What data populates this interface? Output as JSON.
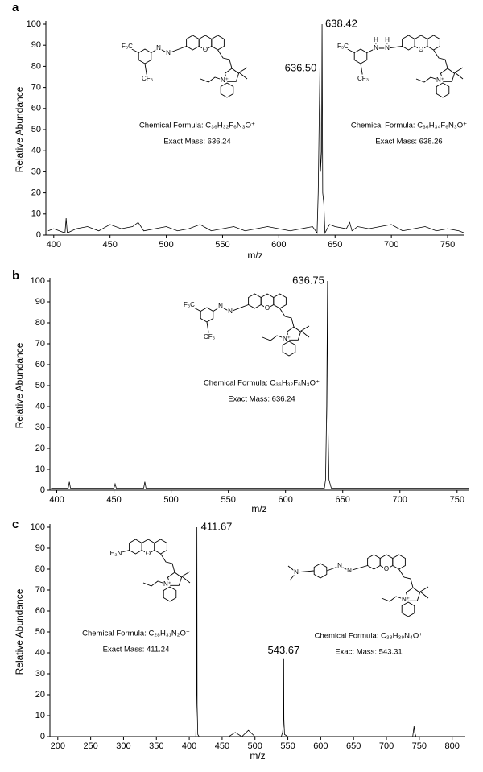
{
  "chart_data": [
    {
      "type": "line",
      "panel": "a",
      "ylabel": "Relative Abundance",
      "xlabel": "m/z",
      "color": "#000000",
      "xlim": [
        393,
        765
      ],
      "xticks": [
        400,
        450,
        500,
        550,
        600,
        650,
        700,
        750
      ],
      "ylim": [
        0,
        100
      ],
      "yticks": [
        0,
        10,
        20,
        30,
        40,
        50,
        60,
        70,
        80,
        90,
        100
      ],
      "x": [
        395,
        400,
        405,
        410,
        411,
        412,
        420,
        430,
        440,
        450,
        460,
        470,
        475,
        480,
        490,
        500,
        510,
        520,
        530,
        540,
        550,
        560,
        570,
        580,
        590,
        600,
        610,
        620,
        630,
        634,
        635,
        636,
        636.5,
        637,
        638,
        638.42,
        639,
        640,
        641,
        645,
        650,
        660,
        663,
        665,
        670,
        680,
        690,
        700,
        710,
        720,
        730,
        740,
        750,
        760,
        765
      ],
      "values": [
        2,
        3,
        2,
        1,
        8,
        1,
        3,
        4,
        2,
        5,
        3,
        4,
        6,
        2,
        3,
        4,
        2,
        3,
        5,
        2,
        3,
        4,
        2,
        3,
        4,
        3,
        2,
        3,
        4,
        1,
        20,
        60,
        79,
        30,
        40,
        100,
        20,
        15,
        1,
        5,
        4,
        3,
        6,
        2,
        4,
        3,
        4,
        5,
        2,
        3,
        4,
        2,
        3,
        2,
        1
      ],
      "annotations": [
        {
          "label": "638.42",
          "x": 638.42,
          "y": 100
        },
        {
          "label": "636.50",
          "x": 636.5,
          "y": 79
        }
      ],
      "structures": [
        {
          "atoms": [
            "F₃C",
            "N",
            "N",
            "O",
            "CF₃",
            "N⁺"
          ],
          "formula": "Chemical Formula: C₃₆H₃₂F₆N₃O⁺",
          "mass": "Exact Mass: 636.24"
        },
        {
          "atoms": [
            "F₃C",
            "N",
            "N",
            "H",
            "H",
            "O",
            "CF₃",
            "N⁺"
          ],
          "formula": "Chemical Formula: C₃₆H₃₄F₆N₃O⁺",
          "mass": "Exact Mass: 638.26"
        }
      ]
    },
    {
      "type": "line",
      "panel": "b",
      "ylabel": "Relative Abundance",
      "xlabel": "m/z",
      "color": "#000000",
      "xlim": [
        394,
        760
      ],
      "xticks": [
        400,
        450,
        500,
        550,
        600,
        650,
        700,
        750
      ],
      "ylim": [
        0,
        100
      ],
      "yticks": [
        0,
        10,
        20,
        30,
        40,
        50,
        60,
        70,
        80,
        90,
        100
      ],
      "x": [
        395,
        410,
        411,
        412,
        430,
        450,
        451,
        452,
        470,
        476,
        477,
        478,
        480,
        500,
        530,
        550,
        580,
        600,
        620,
        630,
        634,
        635,
        636,
        636.75,
        637,
        638,
        640,
        660,
        700,
        740,
        760
      ],
      "values": [
        1,
        1,
        4,
        1,
        1,
        1,
        3,
        1,
        1,
        1,
        4,
        1,
        1,
        1,
        1,
        1,
        1,
        1,
        1,
        1,
        1,
        5,
        40,
        100,
        35,
        5,
        1,
        1,
        1,
        1,
        1
      ],
      "annotations": [
        {
          "label": "636.75",
          "x": 636.75,
          "y": 100
        }
      ],
      "structures": [
        {
          "atoms": [
            "F₃C",
            "N",
            "N",
            "O",
            "CF₃",
            "N⁺"
          ],
          "formula": "Chemical Formula: C₃₆H₃₂F₆N₃O⁺",
          "mass": "Exact Mass: 636.24"
        }
      ]
    },
    {
      "type": "line",
      "panel": "c",
      "ylabel": "Relative Abundance",
      "xlabel": "m/z",
      "color": "#000000",
      "xlim": [
        188,
        820
      ],
      "xticks": [
        200,
        250,
        300,
        350,
        400,
        450,
        500,
        550,
        600,
        650,
        700,
        750,
        800
      ],
      "ylim": [
        0,
        100
      ],
      "yticks": [
        0,
        10,
        20,
        30,
        40,
        50,
        60,
        70,
        80,
        90,
        100
      ],
      "x": [
        190,
        250,
        300,
        350,
        400,
        405,
        410,
        411,
        411.67,
        412,
        413,
        415,
        420,
        430,
        440,
        450,
        460,
        470,
        480,
        490,
        500,
        530,
        540,
        542,
        543,
        543.67,
        544,
        545,
        550,
        600,
        650,
        700,
        740,
        742,
        743,
        745,
        800,
        820
      ],
      "values": [
        0,
        0,
        0,
        0,
        0,
        0,
        0,
        20,
        100,
        15,
        1,
        0,
        0,
        0,
        0,
        0,
        0,
        2,
        0,
        3,
        0,
        0,
        0,
        2,
        5,
        37,
        8,
        1,
        0,
        0,
        0,
        0,
        0,
        5,
        2,
        0,
        0,
        0
      ],
      "annotations": [
        {
          "label": "411.67",
          "x": 411.67,
          "y": 100
        },
        {
          "label": "543.67",
          "x": 543.67,
          "y": 37
        }
      ],
      "structures": [
        {
          "atoms": [
            "H₂N",
            "O",
            "N⁺"
          ],
          "formula": "Chemical Formula: C₂₈H₃₁N₂O⁺",
          "mass": "Exact Mass: 411.24"
        },
        {
          "atoms": [
            "N",
            "N",
            "N",
            "O",
            "N⁺"
          ],
          "formula": "Chemical Formula: C₃₈H₃₉N₄O⁺",
          "mass": "Exact Mass: 543.31"
        }
      ]
    }
  ]
}
